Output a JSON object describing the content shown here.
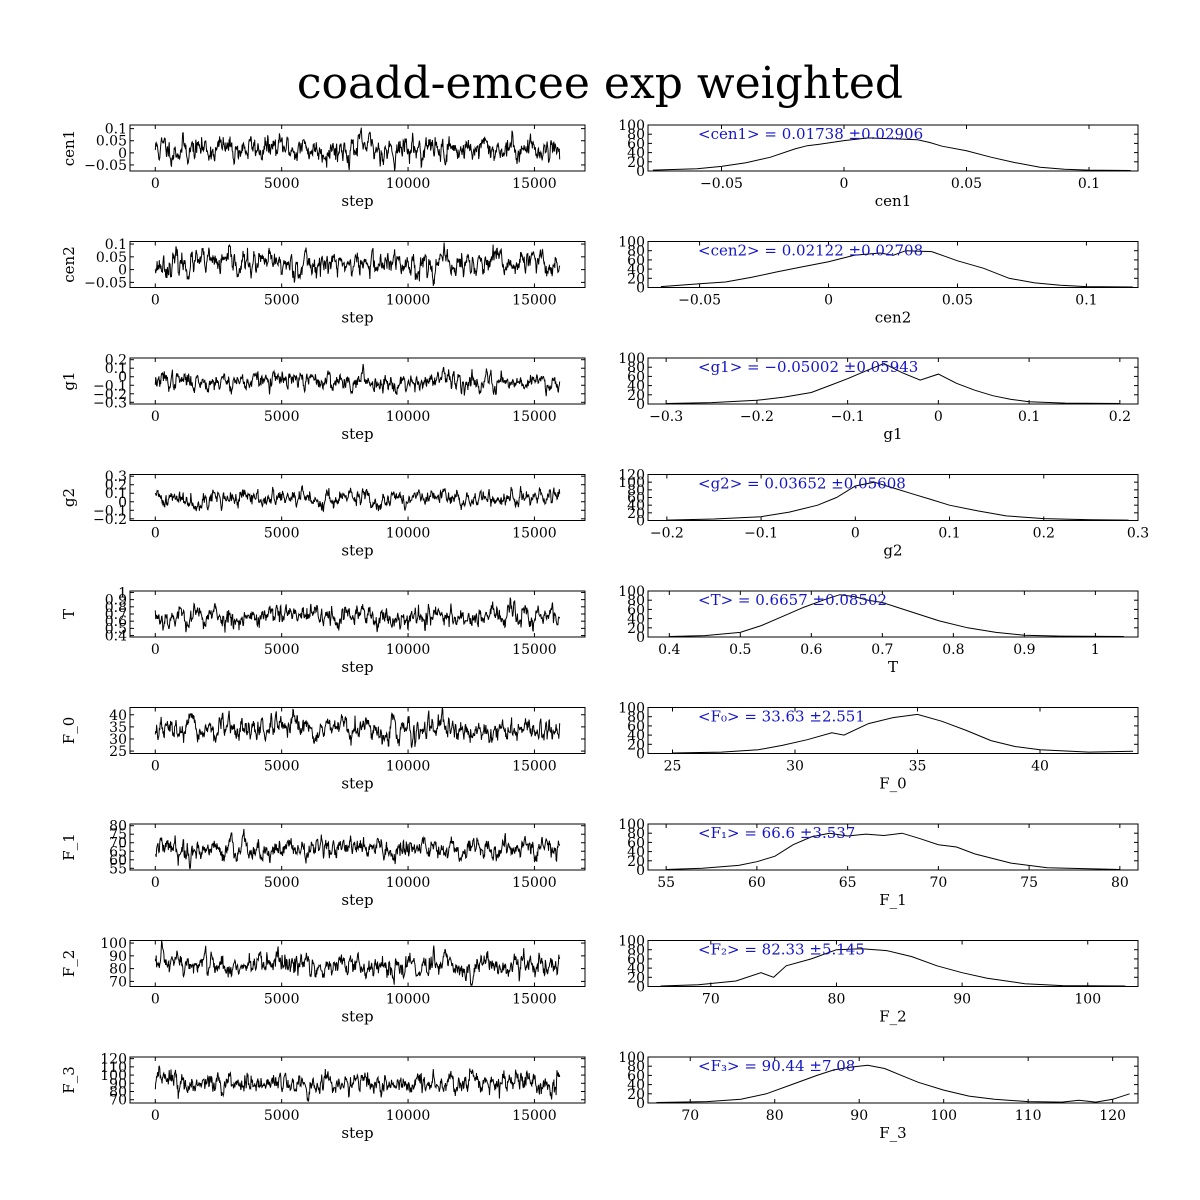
{
  "title": "coadd-emcee exp weighted",
  "colors": {
    "line": "#000000",
    "annotation": "#1414c8"
  },
  "n_steps": 16000,
  "chart_data": [
    {
      "param": "cen1",
      "trace": {
        "type": "line",
        "xlabel": "step",
        "ylabel": "cen1",
        "xlim": [
          -1000,
          17000
        ],
        "xticks": [
          0,
          5000,
          10000,
          15000
        ],
        "yticks": [
          -0.05,
          0,
          0.05,
          0.1
        ],
        "ylim": [
          -0.075,
          0.115
        ],
        "center": 0.017,
        "sigma": 0.029,
        "seed": 11
      },
      "hist": {
        "type": "line",
        "xlabel": "cen1",
        "xlim": [
          -0.08,
          0.12
        ],
        "xticks": [
          -0.05,
          0,
          0.05,
          0.1
        ],
        "yticks": [
          0,
          20,
          40,
          60,
          80,
          100
        ],
        "ylim": [
          0,
          100
        ],
        "annotation": "<cen1> = 0.01738 ±0.02906",
        "x": [
          -0.078,
          -0.06,
          -0.05,
          -0.04,
          -0.03,
          -0.02,
          -0.015,
          -0.01,
          0.0,
          0.01,
          0.02,
          0.03,
          0.035,
          0.04,
          0.05,
          0.06,
          0.07,
          0.08,
          0.09,
          0.1,
          0.117
        ],
        "y": [
          2,
          5,
          10,
          18,
          30,
          48,
          55,
          58,
          66,
          72,
          70,
          68,
          62,
          54,
          44,
          30,
          18,
          8,
          4,
          2,
          1
        ]
      }
    },
    {
      "param": "cen2",
      "trace": {
        "type": "line",
        "xlabel": "step",
        "ylabel": "cen2",
        "xlim": [
          -1000,
          17000
        ],
        "xticks": [
          0,
          5000,
          10000,
          15000
        ],
        "yticks": [
          -0.05,
          0,
          0.05,
          0.1
        ],
        "ylim": [
          -0.07,
          0.11
        ],
        "center": 0.021,
        "sigma": 0.027,
        "seed": 23
      },
      "hist": {
        "type": "line",
        "xlabel": "cen2",
        "xlim": [
          -0.07,
          0.12
        ],
        "xticks": [
          -0.05,
          0,
          0.05,
          0.1
        ],
        "yticks": [
          0,
          20,
          40,
          60,
          80,
          100
        ],
        "ylim": [
          0,
          100
        ],
        "annotation": "<cen2> = 0.02122 ±0.02708",
        "x": [
          -0.065,
          -0.05,
          -0.04,
          -0.03,
          -0.02,
          -0.01,
          0.0,
          0.01,
          0.02,
          0.025,
          0.03,
          0.04,
          0.045,
          0.05,
          0.06,
          0.07,
          0.08,
          0.09,
          0.1,
          0.118
        ],
        "y": [
          2,
          8,
          12,
          22,
          34,
          45,
          56,
          70,
          75,
          70,
          80,
          78,
          68,
          58,
          42,
          20,
          10,
          5,
          2,
          1
        ]
      }
    },
    {
      "param": "g1",
      "trace": {
        "type": "line",
        "xlabel": "step",
        "ylabel": "g1",
        "xlim": [
          -1000,
          17000
        ],
        "xticks": [
          0,
          5000,
          10000,
          15000
        ],
        "yticks": [
          -0.3,
          -0.2,
          -0.1,
          0,
          0.1,
          0.2
        ],
        "ylim": [
          -0.32,
          0.22
        ],
        "center": -0.05,
        "sigma": 0.059,
        "seed": 37
      },
      "hist": {
        "type": "line",
        "xlabel": "g1",
        "xlim": [
          -0.32,
          0.22
        ],
        "xticks": [
          -0.3,
          -0.2,
          -0.1,
          0,
          0.1,
          0.2
        ],
        "yticks": [
          0,
          20,
          40,
          60,
          80,
          100
        ],
        "ylim": [
          0,
          100
        ],
        "annotation": "<g1> = −0.05002 ±0.05943",
        "x": [
          -0.3,
          -0.25,
          -0.2,
          -0.17,
          -0.14,
          -0.12,
          -0.1,
          -0.08,
          -0.06,
          -0.04,
          -0.02,
          0.0,
          0.02,
          0.04,
          0.06,
          0.08,
          0.1,
          0.14,
          0.2
        ],
        "y": [
          1,
          3,
          8,
          15,
          25,
          40,
          55,
          72,
          88,
          68,
          52,
          65,
          45,
          30,
          18,
          10,
          5,
          2,
          1
        ]
      }
    },
    {
      "param": "g2",
      "trace": {
        "type": "line",
        "xlabel": "step",
        "ylabel": "g2",
        "xlim": [
          -1000,
          17000
        ],
        "xticks": [
          0,
          5000,
          10000,
          15000
        ],
        "yticks": [
          -0.2,
          -0.1,
          0,
          0.1,
          0.2,
          0.3
        ],
        "ylim": [
          -0.22,
          0.32
        ],
        "center": 0.037,
        "sigma": 0.056,
        "seed": 41
      },
      "hist": {
        "type": "line",
        "xlabel": "g2",
        "xlim": [
          -0.22,
          0.3
        ],
        "xticks": [
          -0.2,
          -0.1,
          0,
          0.1,
          0.2,
          0.3
        ],
        "yticks": [
          0,
          20,
          40,
          60,
          80,
          100,
          120
        ],
        "ylim": [
          0,
          120
        ],
        "annotation": "<g2> = 0.03652 ±0.05608",
        "x": [
          -0.2,
          -0.15,
          -0.1,
          -0.07,
          -0.04,
          -0.02,
          0.0,
          0.02,
          0.04,
          0.06,
          0.08,
          0.1,
          0.13,
          0.16,
          0.2,
          0.25,
          0.29
        ],
        "y": [
          1,
          4,
          10,
          22,
          40,
          60,
          90,
          100,
          85,
          70,
          55,
          40,
          25,
          12,
          5,
          2,
          1
        ]
      }
    },
    {
      "param": "T",
      "trace": {
        "type": "line",
        "xlabel": "step",
        "ylabel": "T",
        "xlim": [
          -1000,
          17000
        ],
        "xticks": [
          0,
          5000,
          10000,
          15000
        ],
        "yticks": [
          0.4,
          0.5,
          0.6,
          0.7,
          0.8,
          0.9,
          1
        ],
        "ylim": [
          0.38,
          1.02
        ],
        "center": 0.666,
        "sigma": 0.085,
        "seed": 53
      },
      "hist": {
        "type": "line",
        "xlabel": "T",
        "xlim": [
          0.37,
          1.06
        ],
        "xticks": [
          0.4,
          0.5,
          0.6,
          0.7,
          0.8,
          0.9,
          1
        ],
        "yticks": [
          0,
          20,
          40,
          60,
          80,
          100
        ],
        "ylim": [
          0,
          100
        ],
        "annotation": "<T> = 0.6657 ±0.08502",
        "x": [
          0.4,
          0.45,
          0.5,
          0.53,
          0.56,
          0.59,
          0.62,
          0.64,
          0.66,
          0.68,
          0.7,
          0.72,
          0.75,
          0.78,
          0.82,
          0.86,
          0.9,
          0.95,
          1.04
        ],
        "y": [
          1,
          3,
          10,
          25,
          45,
          65,
          82,
          92,
          88,
          80,
          75,
          65,
          50,
          35,
          20,
          10,
          4,
          2,
          1
        ]
      }
    },
    {
      "param": "F_0",
      "trace": {
        "type": "line",
        "xlabel": "step",
        "ylabel": "F_0",
        "xlim": [
          -1000,
          17000
        ],
        "xticks": [
          0,
          5000,
          10000,
          15000
        ],
        "yticks": [
          25,
          30,
          35,
          40
        ],
        "ylim": [
          24,
          43
        ],
        "center": 33.63,
        "sigma": 2.55,
        "seed": 67
      },
      "hist": {
        "type": "line",
        "xlabel": "F_0",
        "xlim": [
          24,
          44
        ],
        "xticks": [
          25,
          30,
          35,
          40
        ],
        "yticks": [
          0,
          20,
          40,
          60,
          80,
          100
        ],
        "ylim": [
          0,
          100
        ],
        "annotation": "<F₀> = 33.63 ±2.551",
        "x": [
          25,
          27,
          28.5,
          29.5,
          30.5,
          31.5,
          32,
          33,
          34,
          35,
          36,
          37,
          38,
          39,
          40,
          42,
          43.8
        ],
        "y": [
          1,
          3,
          8,
          18,
          30,
          45,
          40,
          65,
          78,
          85,
          70,
          50,
          28,
          15,
          8,
          3,
          5
        ]
      }
    },
    {
      "param": "F_1",
      "trace": {
        "type": "line",
        "xlabel": "step",
        "ylabel": "F_1",
        "xlim": [
          -1000,
          17000
        ],
        "xticks": [
          0,
          5000,
          10000,
          15000
        ],
        "yticks": [
          55,
          60,
          65,
          70,
          75,
          80
        ],
        "ylim": [
          54,
          81
        ],
        "center": 66.6,
        "sigma": 3.54,
        "seed": 79
      },
      "hist": {
        "type": "line",
        "xlabel": "F_1",
        "xlim": [
          54,
          81
        ],
        "xticks": [
          55,
          60,
          65,
          70,
          75,
          80
        ],
        "yticks": [
          0,
          20,
          40,
          60,
          80,
          100
        ],
        "ylim": [
          0,
          100
        ],
        "annotation": "<F₁> = 66.6 ±3.537",
        "x": [
          55,
          57,
          59,
          60,
          61,
          62,
          63,
          64,
          65,
          66,
          67,
          68,
          69,
          70,
          71,
          72,
          73,
          74,
          76,
          80
        ],
        "y": [
          1,
          4,
          10,
          18,
          30,
          55,
          72,
          80,
          74,
          78,
          75,
          80,
          68,
          55,
          50,
          35,
          25,
          15,
          5,
          1
        ]
      }
    },
    {
      "param": "F_2",
      "trace": {
        "type": "line",
        "xlabel": "step",
        "ylabel": "F_2",
        "xlim": [
          -1000,
          17000
        ],
        "xticks": [
          0,
          5000,
          10000,
          15000
        ],
        "yticks": [
          70,
          80,
          90,
          100
        ],
        "ylim": [
          66,
          102
        ],
        "center": 82.33,
        "sigma": 5.15,
        "seed": 97
      },
      "hist": {
        "type": "line",
        "xlabel": "F_2",
        "xlim": [
          65,
          104
        ],
        "xticks": [
          70,
          80,
          90,
          100
        ],
        "yticks": [
          0,
          20,
          40,
          60,
          80,
          100
        ],
        "ylim": [
          0,
          100
        ],
        "annotation": "<F₂> = 82.33 ±5.145",
        "x": [
          66,
          69,
          72,
          74,
          75,
          76,
          78,
          80,
          82,
          84,
          86,
          88,
          90,
          92,
          95,
          98,
          103
        ],
        "y": [
          1,
          4,
          12,
          30,
          20,
          45,
          60,
          80,
          82,
          78,
          65,
          45,
          30,
          18,
          6,
          2,
          1
        ]
      }
    },
    {
      "param": "F_3",
      "trace": {
        "type": "line",
        "xlabel": "step",
        "ylabel": "F_3",
        "xlim": [
          -1000,
          17000
        ],
        "xticks": [
          0,
          5000,
          10000,
          15000
        ],
        "yticks": [
          70,
          80,
          90,
          100,
          110,
          120
        ],
        "ylim": [
          66,
          122
        ],
        "center": 90.44,
        "sigma": 7.08,
        "seed": 113
      },
      "hist": {
        "type": "line",
        "xlabel": "F_3",
        "xlim": [
          65,
          123
        ],
        "xticks": [
          70,
          80,
          90,
          100,
          110,
          120
        ],
        "yticks": [
          0,
          20,
          40,
          60,
          80,
          100
        ],
        "ylim": [
          0,
          100
        ],
        "annotation": "<F₃> = 90.44 ±7.08",
        "x": [
          66,
          72,
          76,
          79,
          82,
          85,
          87,
          89,
          91,
          93,
          95,
          97,
          100,
          103,
          106,
          110,
          114,
          116,
          118,
          120,
          122
        ],
        "y": [
          1,
          3,
          8,
          20,
          40,
          60,
          72,
          78,
          82,
          75,
          60,
          45,
          28,
          15,
          8,
          3,
          2,
          6,
          2,
          8,
          20
        ]
      }
    }
  ]
}
